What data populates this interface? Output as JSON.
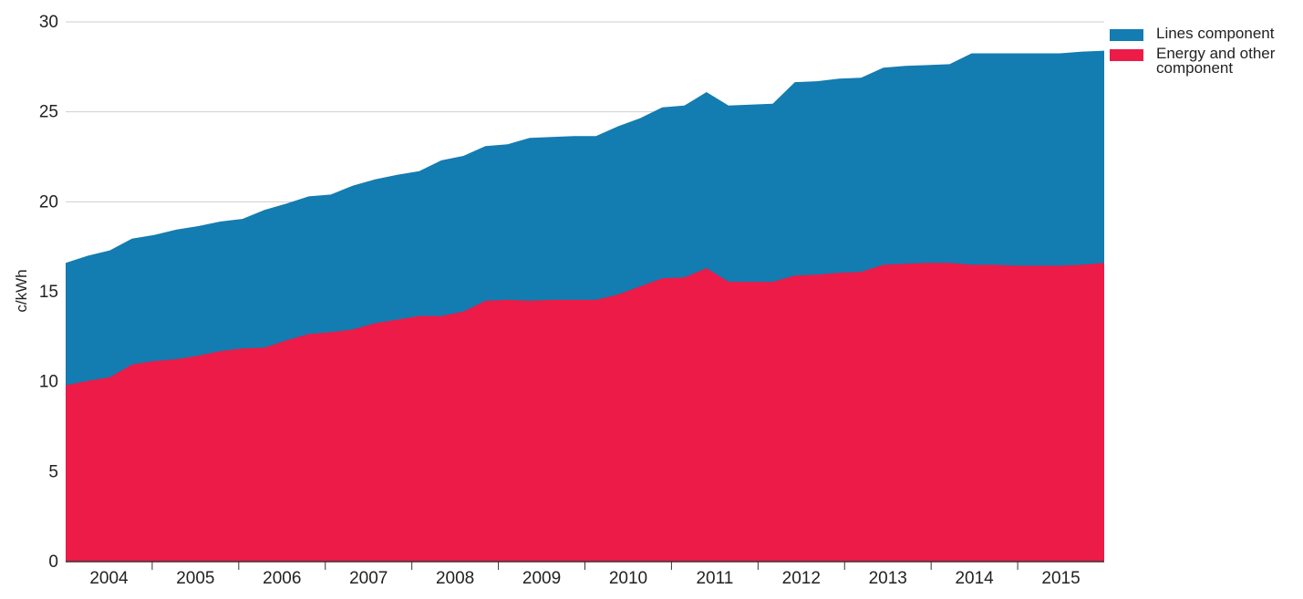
{
  "chart_data": {
    "type": "area",
    "stacked": true,
    "ylabel": "c/kWh",
    "xlabel": "",
    "ylim": [
      0,
      30
    ],
    "yticks": [
      "0",
      "5",
      "10",
      "15",
      "20",
      "25",
      "30"
    ],
    "xtick_labels": [
      "2004",
      "2005",
      "2006",
      "2007",
      "2008",
      "2009",
      "2010",
      "2011",
      "2012",
      "2013",
      "2014",
      "2015"
    ],
    "grid": true,
    "legend_position": "top-right",
    "x": [
      "2004 Q1",
      "2004 Q2",
      "2004 Q3",
      "2004 Q4",
      "2005 Q1",
      "2005 Q2",
      "2005 Q3",
      "2005 Q4",
      "2006 Q1",
      "2006 Q2",
      "2006 Q3",
      "2006 Q4",
      "2007 Q1",
      "2007 Q2",
      "2007 Q3",
      "2007 Q4",
      "2008 Q1",
      "2008 Q2",
      "2008 Q3",
      "2008 Q4",
      "2009 Q1",
      "2009 Q2",
      "2009 Q3",
      "2009 Q4",
      "2010 Q1",
      "2010 Q2",
      "2010 Q3",
      "2010 Q4",
      "2011 Q1",
      "2011 Q2",
      "2011 Q3",
      "2011 Q4",
      "2012 Q1",
      "2012 Q2",
      "2012 Q3",
      "2012 Q4",
      "2013 Q1",
      "2013 Q2",
      "2013 Q3",
      "2013 Q4",
      "2014 Q1",
      "2014 Q2",
      "2014 Q3",
      "2014 Q4",
      "2015 Q1",
      "2015 Q2",
      "2015 Q3",
      "2015 Q4"
    ],
    "series": [
      {
        "name": "Energy and other component",
        "color": "#ec1b48",
        "values": [
          9.8,
          10.05,
          10.25,
          10.95,
          11.15,
          11.25,
          11.45,
          11.7,
          11.85,
          11.9,
          12.3,
          12.65,
          12.75,
          12.9,
          13.25,
          13.45,
          13.65,
          13.65,
          13.9,
          14.5,
          14.55,
          14.5,
          14.55,
          14.55,
          14.55,
          14.85,
          15.3,
          15.75,
          15.8,
          16.3,
          15.55,
          15.55,
          15.55,
          15.9,
          15.95,
          16.05,
          16.1,
          16.5,
          16.55,
          16.6,
          16.6,
          16.5,
          16.5,
          16.45,
          16.45,
          16.45,
          16.5,
          16.6
        ]
      },
      {
        "name": "Lines component",
        "color": "#137cb1",
        "values": [
          6.8,
          6.95,
          7.05,
          7.0,
          7.0,
          7.2,
          7.2,
          7.2,
          7.2,
          7.65,
          7.6,
          7.65,
          7.65,
          8.0,
          8.0,
          8.05,
          8.05,
          8.65,
          8.65,
          8.6,
          8.65,
          9.05,
          9.05,
          9.1,
          9.1,
          9.35,
          9.35,
          9.5,
          9.55,
          9.8,
          9.8,
          9.85,
          9.9,
          10.75,
          10.75,
          10.8,
          10.8,
          10.95,
          11.0,
          11.0,
          11.05,
          11.75,
          11.75,
          11.8,
          11.8,
          11.8,
          11.85,
          11.8
        ]
      }
    ]
  }
}
